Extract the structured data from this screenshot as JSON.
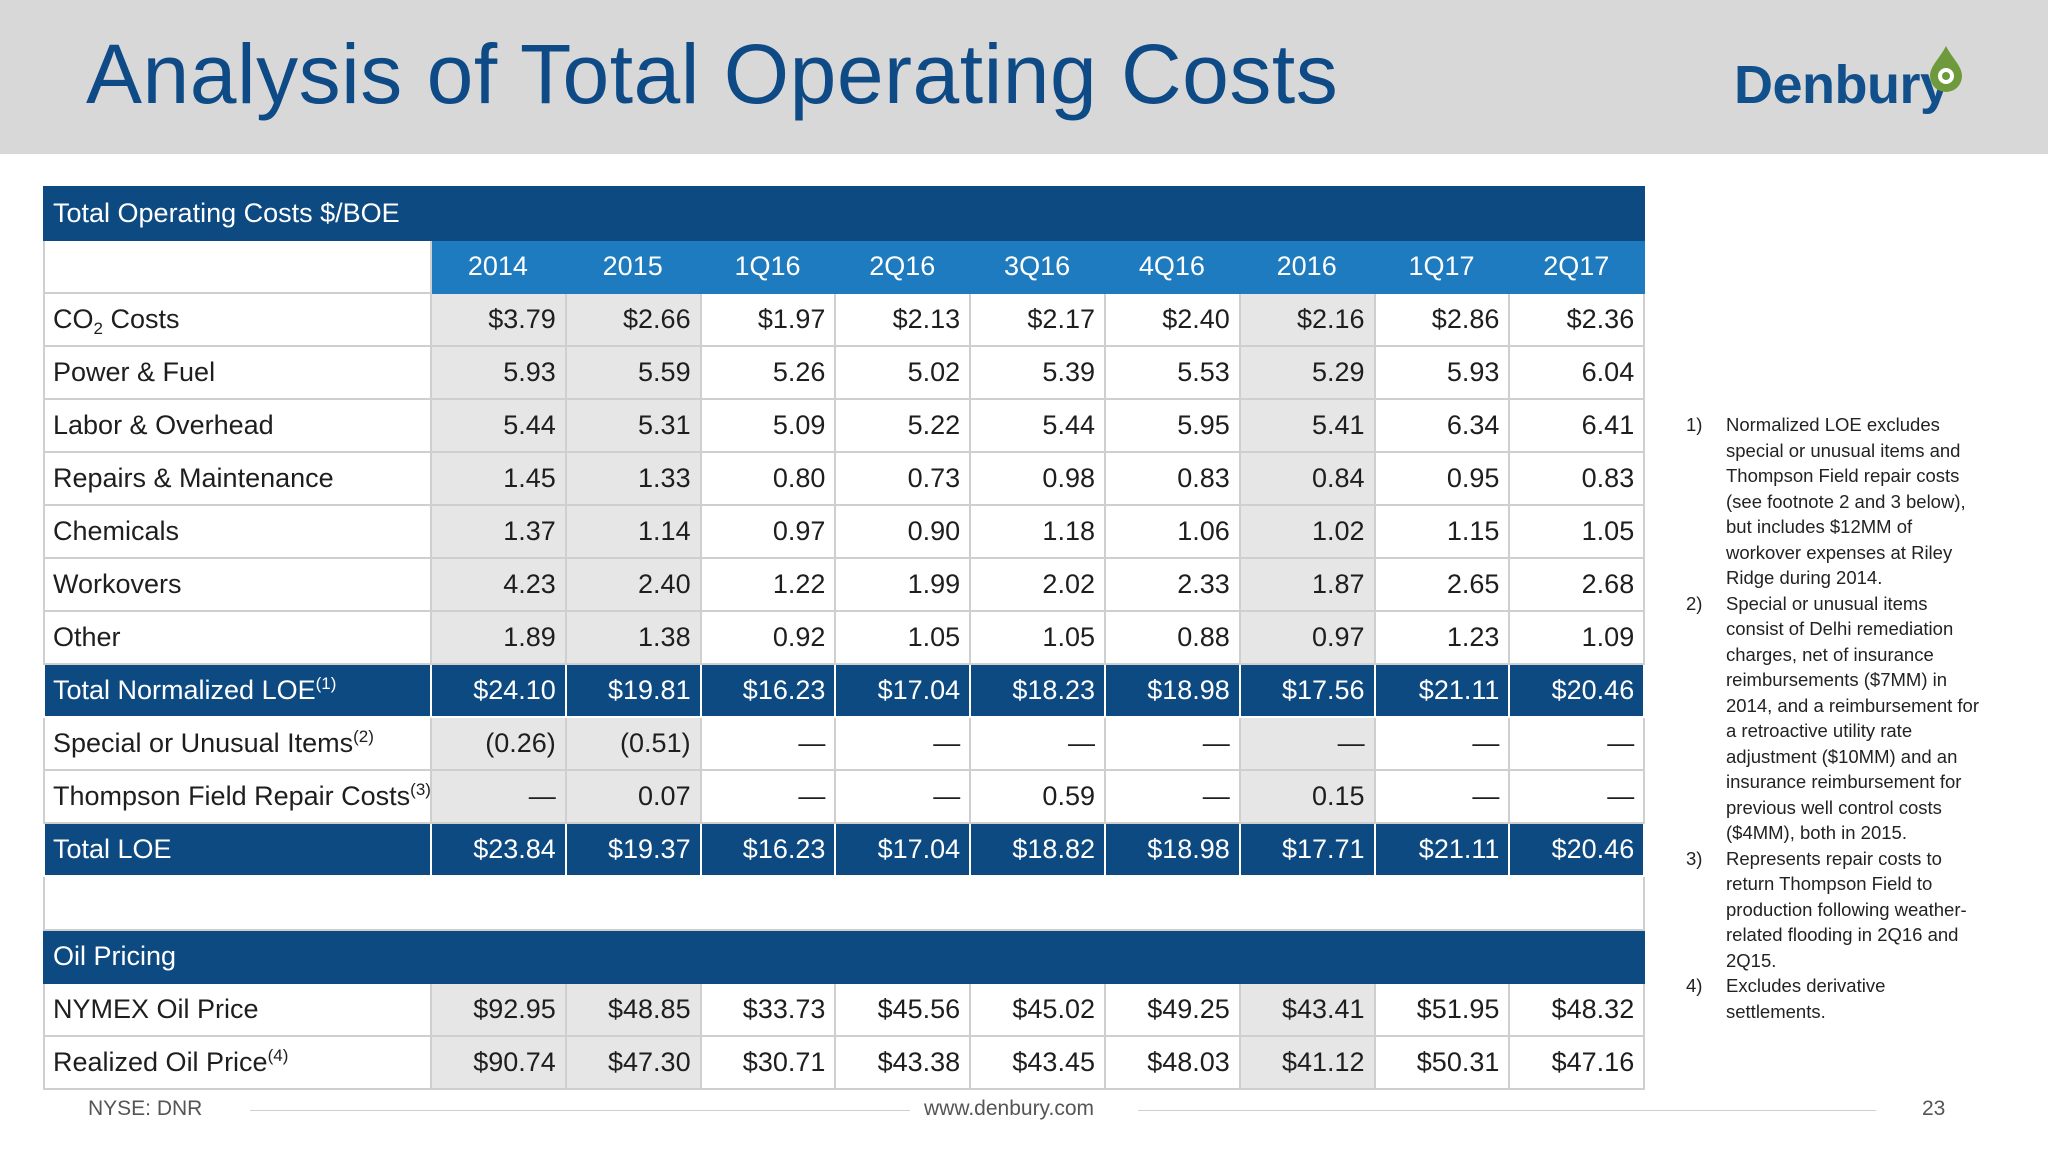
{
  "header": {
    "title": "Analysis of Total Operating Costs",
    "logo_text": "Denbury",
    "colors": {
      "banner": "#d8d8d8",
      "title": "#0d4a86",
      "logo": "#12508c",
      "logo_drop": "#6f9a3b"
    }
  },
  "table": {
    "section_title": "Total Operating Costs $/BOE",
    "columns": [
      "2014",
      "2015",
      "1Q16",
      "2Q16",
      "3Q16",
      "4Q16",
      "2016",
      "1Q17",
      "2Q17"
    ],
    "shaded_columns": [
      0,
      1,
      6
    ],
    "colors": {
      "section": "#0e4a82",
      "year_header": "#1f7bbf",
      "shade": "#e6e6e6"
    },
    "rows": [
      {
        "label": "CO",
        "sub": "2",
        "label_rest": " Costs",
        "values": [
          "$3.79",
          "$2.66",
          "$1.97",
          "$2.13",
          "$2.17",
          "$2.40",
          "$2.16",
          "$2.86",
          "$2.36"
        ]
      },
      {
        "label": "Power & Fuel",
        "values": [
          "5.93",
          "5.59",
          "5.26",
          "5.02",
          "5.39",
          "5.53",
          "5.29",
          "5.93",
          "6.04"
        ]
      },
      {
        "label": "Labor & Overhead",
        "values": [
          "5.44",
          "5.31",
          "5.09",
          "5.22",
          "5.44",
          "5.95",
          "5.41",
          "6.34",
          "6.41"
        ]
      },
      {
        "label": "Repairs & Maintenance",
        "values": [
          "1.45",
          "1.33",
          "0.80",
          "0.73",
          "0.98",
          "0.83",
          "0.84",
          "0.95",
          "0.83"
        ]
      },
      {
        "label": "Chemicals",
        "values": [
          "1.37",
          "1.14",
          "0.97",
          "0.90",
          "1.18",
          "1.06",
          "1.02",
          "1.15",
          "1.05"
        ]
      },
      {
        "label": "Workovers",
        "values": [
          "4.23",
          "2.40",
          "1.22",
          "1.99",
          "2.02",
          "2.33",
          "1.87",
          "2.65",
          "2.68"
        ]
      },
      {
        "label": "Other",
        "values": [
          "1.89",
          "1.38",
          "0.92",
          "1.05",
          "1.05",
          "0.88",
          "0.97",
          "1.23",
          "1.09"
        ]
      },
      {
        "label": "Total Normalized LOE",
        "sup": "(1)",
        "total": true,
        "values": [
          "$24.10",
          "$19.81",
          "$16.23",
          "$17.04",
          "$18.23",
          "$18.98",
          "$17.56",
          "$21.11",
          "$20.46"
        ]
      },
      {
        "label": "Special or Unusual Items",
        "sup": "(2)",
        "values": [
          "(0.26)",
          "(0.51)",
          "—",
          "—",
          "—",
          "—",
          "—",
          "—",
          "—"
        ]
      },
      {
        "label": "Thompson Field Repair Costs",
        "sup": "(3)",
        "values": [
          "—",
          "0.07",
          "—",
          "—",
          "0.59",
          "—",
          "0.15",
          "—",
          "—"
        ]
      },
      {
        "label": "Total LOE",
        "total": true,
        "values": [
          "$23.84",
          "$19.37",
          "$16.23",
          "$17.04",
          "$18.82",
          "$18.98",
          "$17.71",
          "$21.11",
          "$20.46"
        ]
      }
    ],
    "oil_section_title": "Oil Pricing",
    "oil_rows": [
      {
        "label": "NYMEX Oil Price",
        "values": [
          "$92.95",
          "$48.85",
          "$33.73",
          "$45.56",
          "$45.02",
          "$49.25",
          "$43.41",
          "$51.95",
          "$48.32"
        ]
      },
      {
        "label": "Realized Oil Price",
        "sup": "(4)",
        "values": [
          "$90.74",
          "$47.30",
          "$30.71",
          "$43.38",
          "$43.45",
          "$48.03",
          "$41.12",
          "$50.31",
          "$47.16"
        ]
      }
    ]
  },
  "footnotes": [
    {
      "num": "1)",
      "text": "Normalized LOE excludes special or unusual items and Thompson Field repair costs (see footnote 2 and 3 below), but includes $12MM of workover expenses at Riley Ridge during 2014."
    },
    {
      "num": "2)",
      "text": "Special or unusual items consist of Delhi remediation charges, net of insurance reimbursements ($7MM) in 2014, and a reimbursement for a retroactive utility rate adjustment ($10MM) and an insurance reimbursement for previous well control costs ($4MM), both in 2015."
    },
    {
      "num": "3)",
      "text": "Represents repair costs to return Thompson Field to production following weather-related flooding in 2Q16 and 2Q15."
    },
    {
      "num": "4)",
      "text": "Excludes derivative settlements."
    }
  ],
  "footer": {
    "ticker": "NYSE: DNR",
    "website": "www.denbury.com",
    "page_number": "23"
  }
}
